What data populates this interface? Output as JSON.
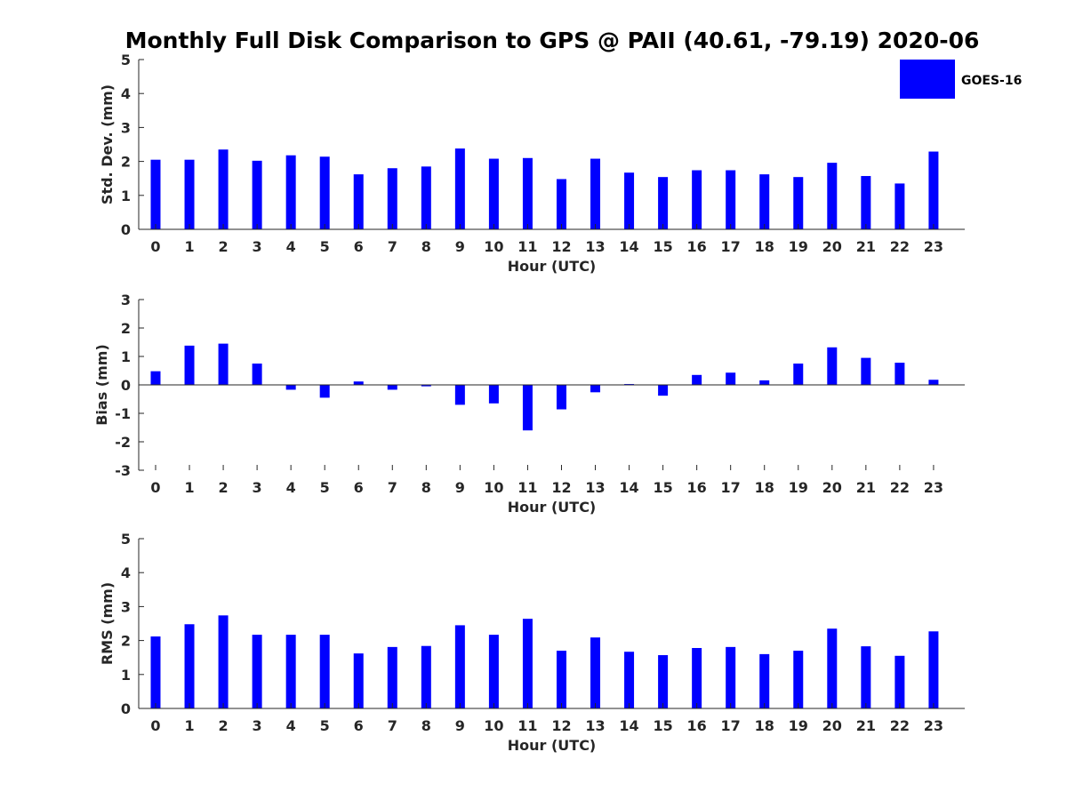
{
  "chart_data": {
    "title": "Monthly Full Disk Comparison to GPS @ PAII (40.61, -79.19) 2020-06",
    "legend": {
      "label": "GOES-16",
      "color": "#0000ff",
      "placement": "top-right"
    },
    "panels": [
      {
        "type": "bar",
        "xlabel": "Hour (UTC)",
        "ylabel": "Std. Dev. (mm)",
        "ylim": [
          0,
          5
        ],
        "yticks": [
          0,
          1,
          2,
          3,
          4,
          5
        ],
        "categories": [
          "0",
          "1",
          "2",
          "3",
          "4",
          "5",
          "6",
          "7",
          "8",
          "9",
          "10",
          "11",
          "12",
          "13",
          "14",
          "15",
          "16",
          "17",
          "18",
          "19",
          "20",
          "21",
          "22",
          "23"
        ],
        "series": [
          {
            "name": "GOES-16",
            "color": "#0000ff",
            "values": [
              2.05,
              2.05,
              2.35,
              2.02,
              2.18,
              2.14,
              1.62,
              1.8,
              1.85,
              2.38,
              2.08,
              2.1,
              1.48,
              2.08,
              1.67,
              1.54,
              1.74,
              1.74,
              1.62,
              1.54,
              1.96,
              1.57,
              1.35,
              2.29
            ]
          }
        ]
      },
      {
        "type": "bar",
        "xlabel": "Hour (UTC)",
        "ylabel": "Bias (mm)",
        "ylim": [
          -3,
          3
        ],
        "yticks": [
          -3,
          -2,
          -1,
          0,
          1,
          2,
          3
        ],
        "categories": [
          "0",
          "1",
          "2",
          "3",
          "4",
          "5",
          "6",
          "7",
          "8",
          "9",
          "10",
          "11",
          "12",
          "13",
          "14",
          "15",
          "16",
          "17",
          "18",
          "19",
          "20",
          "21",
          "22",
          "23"
        ],
        "series": [
          {
            "name": "GOES-16",
            "color": "#0000ff",
            "values": [
              0.48,
              1.38,
              1.45,
              0.75,
              -0.17,
              -0.45,
              0.12,
              -0.17,
              -0.05,
              -0.7,
              -0.65,
              -1.6,
              -0.86,
              -0.26,
              0.03,
              -0.38,
              0.35,
              0.43,
              0.16,
              0.75,
              1.32,
              0.95,
              0.78,
              0.18
            ]
          }
        ]
      },
      {
        "type": "bar",
        "xlabel": "Hour (UTC)",
        "ylabel": "RMS (mm)",
        "ylim": [
          0,
          5
        ],
        "yticks": [
          0,
          1,
          2,
          3,
          4,
          5
        ],
        "categories": [
          "0",
          "1",
          "2",
          "3",
          "4",
          "5",
          "6",
          "7",
          "8",
          "9",
          "10",
          "11",
          "12",
          "13",
          "14",
          "15",
          "16",
          "17",
          "18",
          "19",
          "20",
          "21",
          "22",
          "23"
        ],
        "series": [
          {
            "name": "GOES-16",
            "color": "#0000ff",
            "values": [
              2.12,
              2.48,
              2.74,
              2.17,
              2.17,
              2.17,
              1.62,
              1.81,
              1.84,
              2.45,
              2.17,
              2.64,
              1.7,
              2.09,
              1.67,
              1.57,
              1.78,
              1.81,
              1.6,
              1.7,
              2.35,
              1.83,
              1.55,
              2.27
            ]
          }
        ]
      }
    ]
  }
}
